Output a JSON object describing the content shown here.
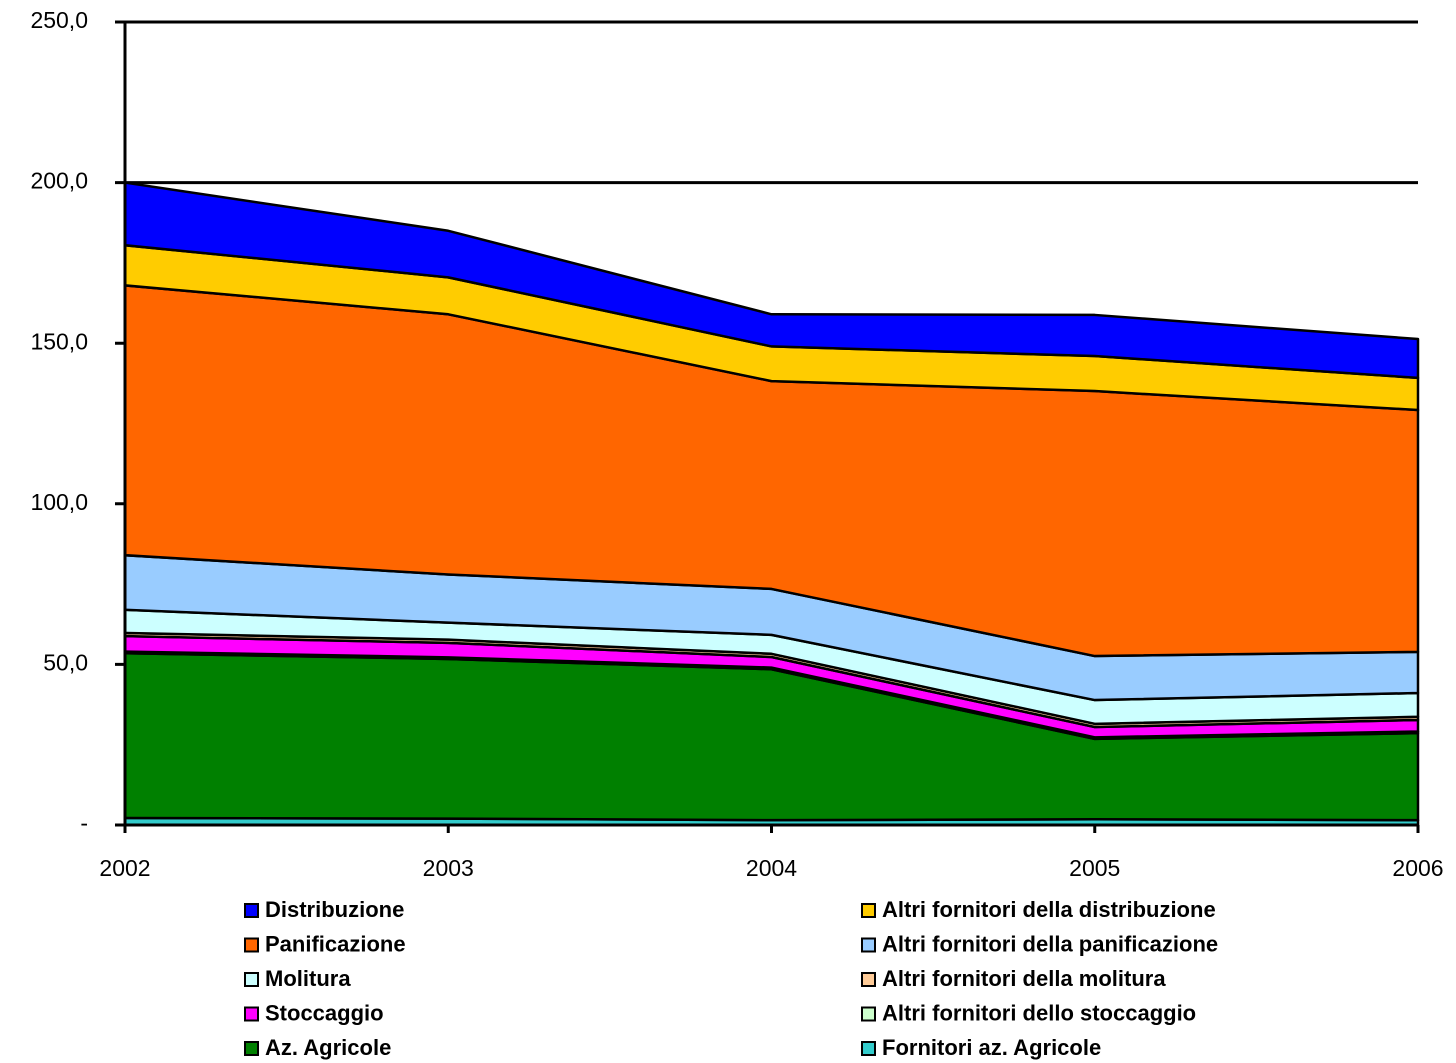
{
  "chart_data": {
    "type": "stacked-area",
    "categories": [
      "2002",
      "2003",
      "2004",
      "2005",
      "2006"
    ],
    "series": [
      {
        "name": "Distribuzione",
        "color": "#0000ff",
        "values": [
          19.5,
          14.5,
          10.0,
          12.8,
          12.1
        ]
      },
      {
        "name": "Altri fornitori della distribuzione",
        "color": "#ffcc00",
        "values": [
          12.5,
          11.5,
          10.8,
          10.9,
          10.0
        ]
      },
      {
        "name": "Panificazione",
        "color": "#ff6600",
        "values": [
          84.0,
          81.0,
          64.7,
          82.5,
          75.3
        ]
      },
      {
        "name": "Altri fornitori della panificazione",
        "color": "#99ccff",
        "values": [
          17.0,
          15.0,
          14.3,
          13.7,
          12.8
        ]
      },
      {
        "name": "Molitura",
        "color": "#ccffff",
        "values": [
          7.2,
          5.3,
          5.9,
          7.4,
          7.4
        ]
      },
      {
        "name": "Altri fornitori della molitura",
        "color": "#ffcc99",
        "values": [
          1.0,
          1.0,
          1.0,
          1.0,
          1.0
        ]
      },
      {
        "name": "Stoccaggio",
        "color": "#ff00ff",
        "values": [
          4.8,
          4.5,
          3.3,
          3.2,
          3.6
        ]
      },
      {
        "name": "Altri fornitori dello stoccaggio",
        "color": "#ccffcc",
        "values": [
          0.5,
          0.5,
          0.5,
          0.5,
          0.5
        ]
      },
      {
        "name": "Az. Agricole",
        "color": "#008000",
        "values": [
          51.3,
          49.7,
          47.0,
          25.0,
          27.1
        ]
      },
      {
        "name": "Fornitori az. Agricole",
        "color": "#33cccc",
        "values": [
          2.2,
          2.0,
          1.5,
          1.8,
          1.5
        ]
      }
    ],
    "ylim": [
      0,
      250
    ],
    "yticks": [
      {
        "value": 0,
        "label": "-"
      },
      {
        "value": 50,
        "label": "50,0"
      },
      {
        "value": 100,
        "label": "100,0"
      },
      {
        "value": 150,
        "label": "150,0"
      },
      {
        "value": 200,
        "label": "200,0"
      },
      {
        "value": 250,
        "label": "250,0"
      }
    ],
    "grid": true
  }
}
